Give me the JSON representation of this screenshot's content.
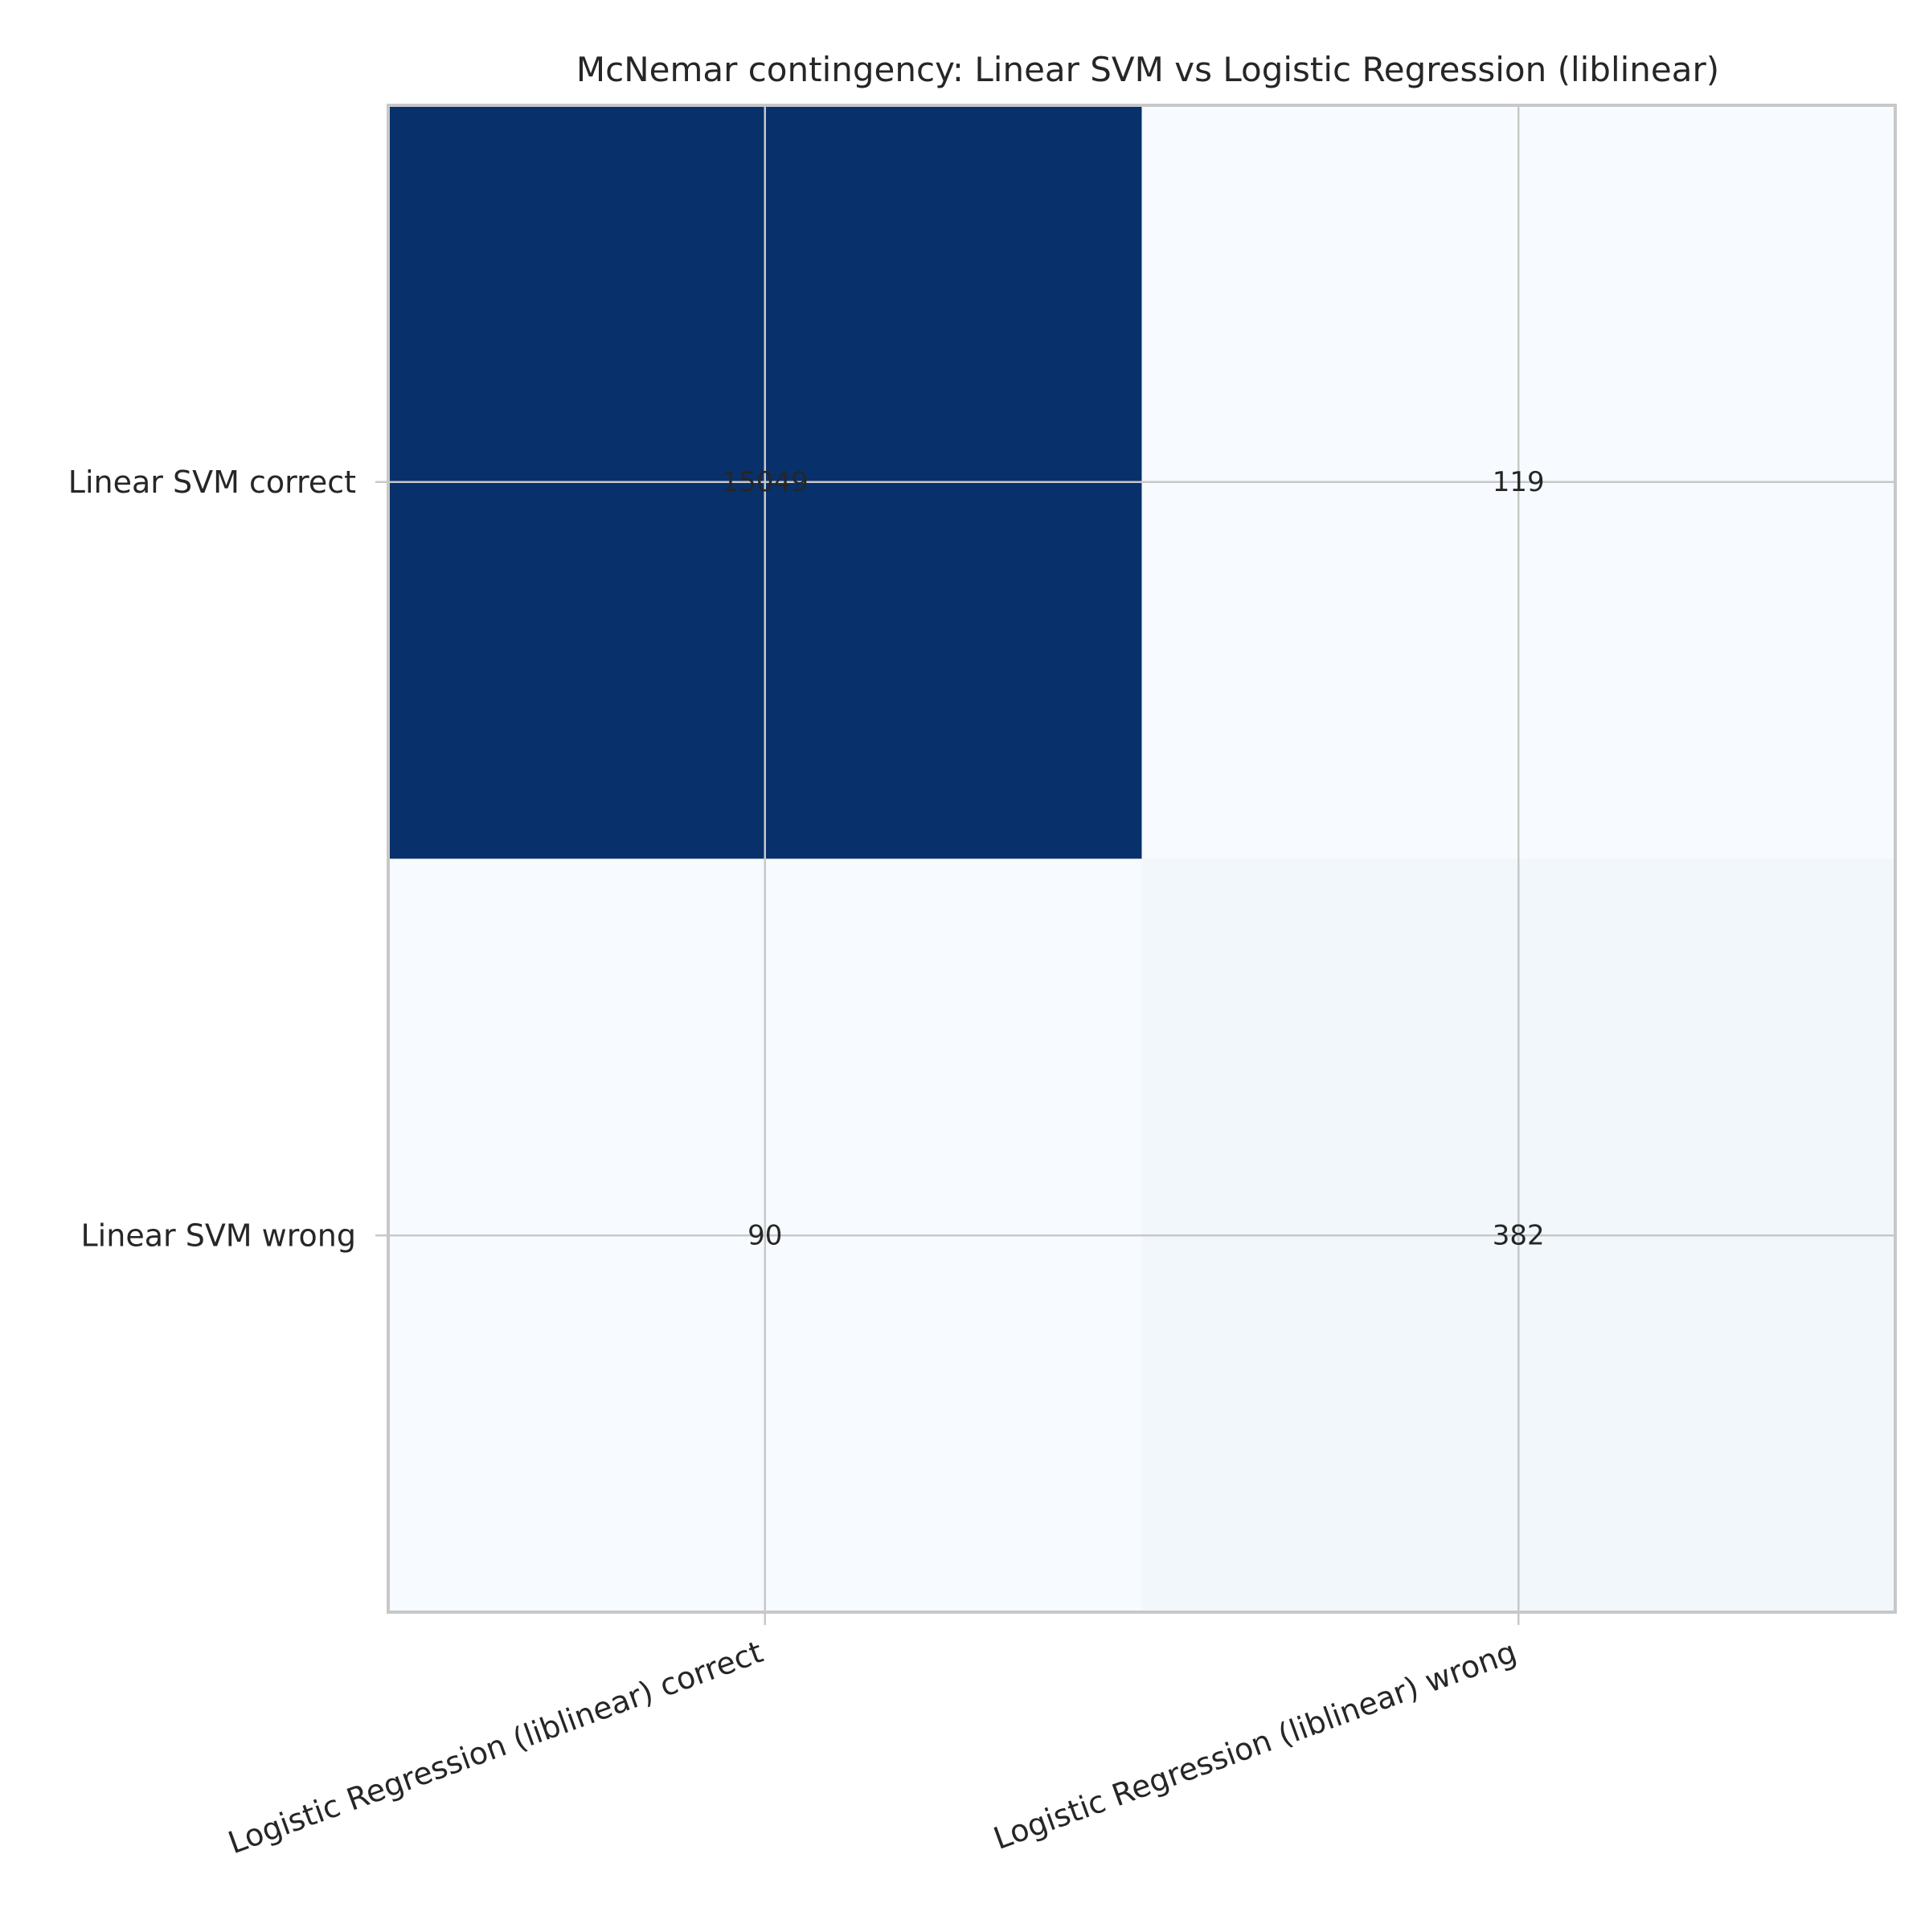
{
  "chart_data": {
    "type": "heatmap",
    "title": "McNemar contingency: Linear SVM vs Logistic Regression (liblinear)",
    "xlabel": "",
    "ylabel": "",
    "x_categories": [
      "Logistic Regression (liblinear) correct",
      "Logistic Regression (liblinear) wrong"
    ],
    "y_categories": [
      "Linear SVM correct",
      "Linear SVM wrong"
    ],
    "values": [
      [
        15049,
        119
      ],
      [
        90,
        382
      ]
    ],
    "colormap": "Blues",
    "color_low": "#f7fbff",
    "color_high": "#08306b",
    "grid": true,
    "annotations": true
  }
}
